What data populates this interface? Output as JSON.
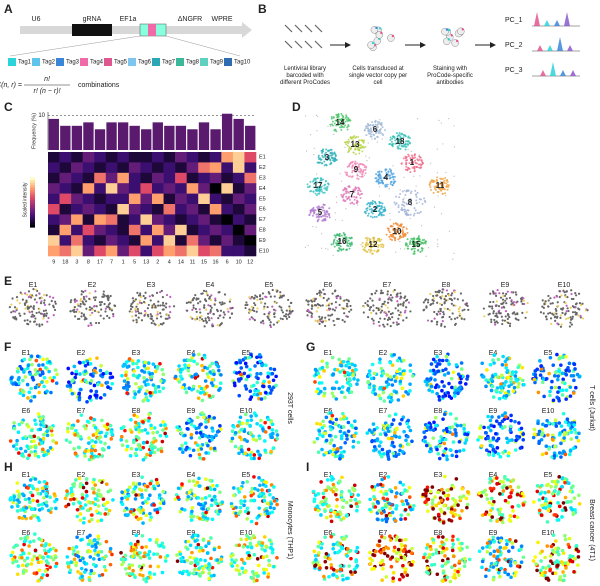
{
  "panels": {
    "a": {
      "label": "A",
      "elements": [
        "U6",
        "gRNA",
        "EF1a",
        "ΔNGFR",
        "WPRE"
      ],
      "tags": [
        "Tag1",
        "Tag2",
        "Tag3",
        "Tag4",
        "Tag5",
        "Tag6",
        "Tag7",
        "Tag8",
        "Tag9",
        "Tag10"
      ],
      "tag_colors": [
        "#2ad4d8",
        "#5fc3ec",
        "#3a86d8",
        "#f06aa8",
        "#e0568f",
        "#7ec6f0",
        "#2aa7b5",
        "#3bb89a",
        "#5ed0c0",
        "#2f6bb0"
      ],
      "formula": {
        "lhs": "C(n, r) =",
        "numerator": "n!",
        "denominator": "r! (n − r)!",
        "suffix": "combinations"
      }
    },
    "b": {
      "label": "B",
      "steps": [
        "Lentiviral library barcoded with different ProCodes",
        "Cells transduced at single vector copy per cell",
        "Staining with ProCode-specific antibodies"
      ],
      "outputs": [
        "PC_1",
        "PC_2",
        "PC_3"
      ]
    },
    "c": {
      "label": "C",
      "frequency_label": "Frequency (%)",
      "ylim": [
        0,
        11
      ],
      "yticks": [
        10
      ],
      "intensity_label": "Scaled intensity",
      "columns": [
        "9",
        "18",
        "3",
        "8",
        "17",
        "7",
        "1",
        "5",
        "13",
        "2",
        "4",
        "14",
        "11",
        "15",
        "16",
        "6",
        "10",
        "12"
      ],
      "rows": [
        "E1",
        "E2",
        "E3",
        "E4",
        "E5",
        "E6",
        "E7",
        "E8",
        "E9",
        "E10"
      ],
      "frequency": [
        9,
        7,
        7,
        8,
        6,
        8,
        8,
        7,
        6,
        8,
        7,
        7,
        6,
        8,
        6,
        10.5,
        9,
        7
      ],
      "heatmap": [
        [
          0.1,
          0.2,
          0.1,
          0.3,
          0.2,
          0.1,
          0.2,
          0.1,
          0.1,
          0.2,
          0.1,
          0.3,
          0.2,
          0.1,
          0.2,
          0.8,
          0.9,
          0.6
        ],
        [
          0.2,
          0.1,
          0.3,
          0.2,
          0.1,
          0.2,
          0.1,
          0.3,
          0.2,
          0.1,
          0.2,
          0.1,
          0.3,
          0.7,
          0.8,
          0.2,
          0.9,
          0.2
        ],
        [
          0.1,
          0.3,
          0.2,
          0.1,
          0.7,
          0.3,
          0.8,
          0.2,
          0.1,
          0.3,
          0.2,
          0.6,
          0.1,
          0.2,
          0.3,
          0.1,
          0.2,
          0.7
        ],
        [
          0.3,
          0.2,
          0.1,
          0.8,
          0.2,
          0.9,
          0.3,
          0.2,
          0.6,
          0.2,
          0.3,
          0.2,
          0.8,
          0.3,
          0.0,
          0.9,
          0.1,
          0.3
        ],
        [
          0.2,
          0.6,
          0.3,
          0.2,
          0.1,
          0.2,
          0.2,
          0.8,
          0.3,
          0.8,
          0.1,
          0.3,
          0.2,
          0.9,
          0.2,
          0.1,
          0.3,
          0.2
        ],
        [
          0.6,
          0.1,
          0.2,
          0.3,
          0.2,
          0.1,
          0.9,
          0.3,
          0.2,
          0.1,
          0.7,
          0.2,
          0.3,
          0.1,
          0.8,
          0.2,
          0.1,
          0.3
        ],
        [
          0.2,
          0.3,
          0.8,
          0.1,
          0.8,
          0.7,
          0.1,
          0.2,
          0.9,
          0.3,
          0.2,
          0.1,
          0.2,
          0.3,
          0.1,
          0.0,
          0.2,
          0.1
        ],
        [
          0.1,
          0.8,
          0.2,
          0.6,
          0.3,
          0.2,
          0.1,
          0.7,
          0.2,
          0.8,
          0.3,
          0.9,
          0.1,
          0.2,
          0.3,
          0.2,
          0.0,
          0.3
        ],
        [
          0.9,
          0.2,
          0.7,
          0.2,
          0.1,
          0.3,
          0.2,
          0.1,
          0.8,
          0.2,
          0.9,
          0.1,
          0.7,
          0.3,
          0.1,
          0.3,
          0.1,
          0.0
        ],
        [
          0.8,
          0.7,
          0.9,
          0.3,
          0.6,
          0.8,
          0.3,
          0.6,
          0.2,
          0.6,
          0.8,
          0.7,
          0.9,
          0.6,
          0.7,
          0.2,
          0.2,
          0.1
        ]
      ]
    },
    "d": {
      "label": "D",
      "clusters": [
        "14",
        "6",
        "18",
        "13",
        "3",
        "9",
        "4",
        "1",
        "17",
        "7",
        "2",
        "8",
        "11",
        "5",
        "16",
        "12",
        "10",
        "15"
      ],
      "colors": [
        "#4cc46a",
        "#9fb9d6",
        "#2fbfb5",
        "#b6d34a",
        "#2ab0b8",
        "#f08ab8",
        "#4aa0e0",
        "#f06b8a",
        "#3ac0c0",
        "#e07ab8",
        "#2fb0c8",
        "#a0b0d8",
        "#f0a040",
        "#b07ad0",
        "#3cb870",
        "#e0c040",
        "#f08a30",
        "#40c060"
      ]
    },
    "e": {
      "label": "E",
      "labels": [
        "E1",
        "E2",
        "E3",
        "E4",
        "E5",
        "E6",
        "E7",
        "E8",
        "E9",
        "E10"
      ]
    },
    "f": {
      "label": "F",
      "labels": [
        "E1",
        "E2",
        "E3",
        "E4",
        "E5",
        "E6",
        "E7",
        "E8",
        "E9",
        "E10"
      ],
      "cells": "293T cells"
    },
    "g": {
      "label": "G",
      "labels": [
        "E1",
        "E2",
        "E3",
        "E4",
        "E5",
        "E6",
        "E7",
        "E8",
        "E9",
        "E10"
      ],
      "cells": "T cells (Jurkat)"
    },
    "h": {
      "label": "H",
      "labels": [
        "E1",
        "E2",
        "E3",
        "E4",
        "E5",
        "E6",
        "E7",
        "E8",
        "E9",
        "E10"
      ],
      "cells": "Monocytes (THP1)"
    },
    "i": {
      "label": "I",
      "labels": [
        "E1",
        "E2",
        "E3",
        "E4",
        "E5",
        "E6",
        "E7",
        "E8",
        "E9",
        "E10"
      ],
      "cells": "Breast cancer (4T1)"
    }
  }
}
